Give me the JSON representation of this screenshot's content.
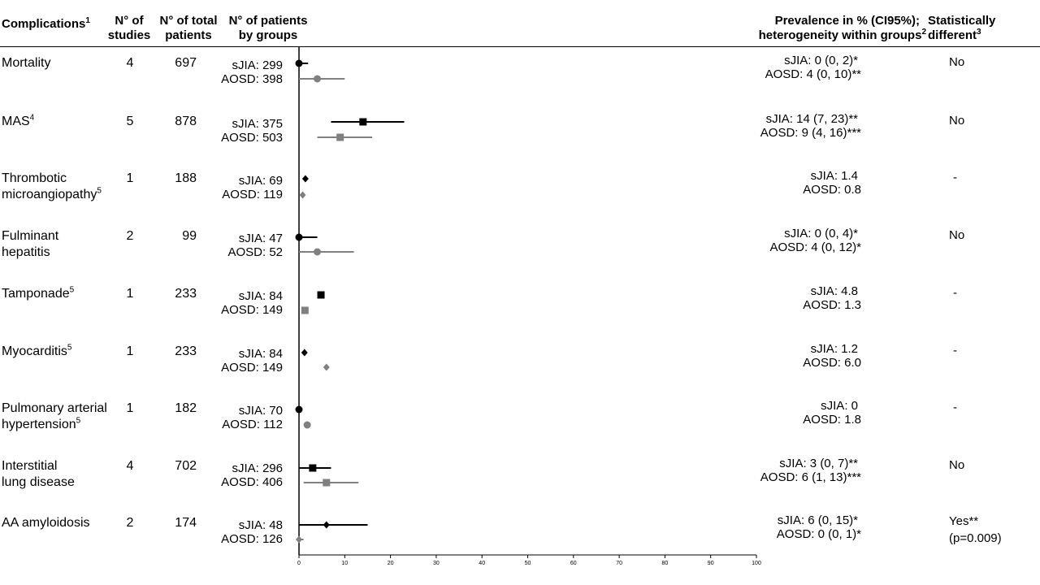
{
  "headers": {
    "complications": "Complications",
    "complications_sup": "1",
    "studies_line1": "N° of",
    "studies_line2": "studies",
    "total_line1": "N° of total",
    "total_line2": "patients",
    "groups_line1": "N° of patients",
    "groups_line2": "by groups",
    "prevalence_line1": "Prevalence in % (CI95%);",
    "prevalence_line2": "heterogeneity within groups",
    "prevalence_sup": "2",
    "statdiff_line1": "Statistically",
    "statdiff_line2": "different",
    "statdiff_sup": "3"
  },
  "rows": [
    {
      "name_lines": [
        "Mortality"
      ],
      "name_sup": "",
      "studies": "4",
      "total": "697",
      "sjia_n": "sJIA: 299",
      "aosd_n": "AOSD: 398",
      "sjia_prev": "sJIA: 0 (0, 2)*",
      "aosd_prev": "AOSD: 4 (0, 10)**",
      "stat": [
        "No"
      ]
    },
    {
      "name_lines": [
        "MAS"
      ],
      "name_sup": "4",
      "studies": "5",
      "total": "878",
      "sjia_n": "sJIA: 375",
      "aosd_n": "AOSD: 503",
      "sjia_prev": "sJIA: 14 (7, 23)**",
      "aosd_prev": "AOSD: 9 (4, 16)***",
      "stat": [
        "No"
      ]
    },
    {
      "name_lines": [
        "Thrombotic",
        "microangiopathy"
      ],
      "name_sup": "5",
      "studies": "1",
      "total": "188",
      "sjia_n": "sJIA: 69",
      "aosd_n": "AOSD: 119",
      "sjia_prev": "sJIA: 1.4",
      "aosd_prev": "AOSD: 0.8",
      "stat": [
        "-"
      ]
    },
    {
      "name_lines": [
        "Fulminant",
        "hepatitis"
      ],
      "name_sup": "",
      "studies": "2",
      "total": "99",
      "sjia_n": "sJIA: 47",
      "aosd_n": "AOSD: 52",
      "sjia_prev": "sJIA: 0 (0, 4)*",
      "aosd_prev": "AOSD: 4 (0, 12)*",
      "stat": [
        "No"
      ]
    },
    {
      "name_lines": [
        "Tamponade"
      ],
      "name_sup": "5",
      "studies": "1",
      "total": "233",
      "sjia_n": "sJIA: 84",
      "aosd_n": "AOSD: 149",
      "sjia_prev": "sJIA: 4.8",
      "aosd_prev": "AOSD: 1.3",
      "stat": [
        "-"
      ]
    },
    {
      "name_lines": [
        "Myocarditis"
      ],
      "name_sup": "5",
      "studies": "1",
      "total": "233",
      "sjia_n": "sJIA: 84",
      "aosd_n": "AOSD: 149",
      "sjia_prev": "sJIA: 1.2",
      "aosd_prev": "AOSD: 6.0",
      "stat": [
        "-"
      ]
    },
    {
      "name_lines": [
        "Pulmonary arterial",
        "hypertension"
      ],
      "name_sup": "5",
      "studies": "1",
      "total": "182",
      "sjia_n": "sJIA: 70",
      "aosd_n": "AOSD: 112",
      "sjia_prev": "sJIA: 0",
      "aosd_prev": "AOSD: 1.8",
      "stat": [
        "-"
      ]
    },
    {
      "name_lines": [
        "Interstitial",
        "lung disease"
      ],
      "name_sup": "",
      "studies": "4",
      "total": "702",
      "sjia_n": "sJIA: 296",
      "aosd_n": "AOSD: 406",
      "sjia_prev": "sJIA: 3 (0, 7)**",
      "aosd_prev": "AOSD: 6 (1, 13)***",
      "stat": [
        "No"
      ]
    },
    {
      "name_lines": [
        "AA amyloidosis"
      ],
      "name_sup": "",
      "studies": "2",
      "total": "174",
      "sjia_n": "sJIA: 48",
      "aosd_n": "AOSD: 126",
      "sjia_prev": "sJIA: 6 (0, 15)*",
      "aosd_prev": "AOSD: 0 (0, 1)*",
      "stat": [
        "Yes**",
        "(p=0.009)"
      ]
    }
  ],
  "colors": {
    "sjia": "#000000",
    "aosd": "#808080"
  },
  "chart_data": {
    "type": "scatter",
    "subtype": "forest-plot",
    "xlim": [
      0,
      100
    ],
    "xticks": [
      0,
      10,
      20,
      30,
      40,
      50,
      60,
      70,
      80,
      90,
      100
    ],
    "grid": false,
    "categories": [
      "Mortality",
      "MAS",
      "Thrombotic microangiopathy",
      "Fulminant hepatitis",
      "Tamponade",
      "Myocarditis",
      "Pulmonary arterial hypertension",
      "Interstitial lung disease",
      "AA amyloidosis"
    ],
    "series": [
      {
        "name": "sJIA",
        "color": "#000000",
        "points": [
          {
            "value": 0,
            "lo": 0,
            "hi": 2,
            "marker": "circle"
          },
          {
            "value": 14,
            "lo": 7,
            "hi": 23,
            "marker": "square"
          },
          {
            "value": 1.4,
            "lo": null,
            "hi": null,
            "marker": "diamond"
          },
          {
            "value": 0,
            "lo": 0,
            "hi": 4,
            "marker": "circle"
          },
          {
            "value": 4.8,
            "lo": null,
            "hi": null,
            "marker": "square"
          },
          {
            "value": 1.2,
            "lo": null,
            "hi": null,
            "marker": "diamond"
          },
          {
            "value": 0,
            "lo": null,
            "hi": null,
            "marker": "circle"
          },
          {
            "value": 3,
            "lo": 0,
            "hi": 7,
            "marker": "square"
          },
          {
            "value": 6,
            "lo": 0,
            "hi": 15,
            "marker": "diamond"
          }
        ]
      },
      {
        "name": "AOSD",
        "color": "#808080",
        "points": [
          {
            "value": 4,
            "lo": 0,
            "hi": 10,
            "marker": "circle"
          },
          {
            "value": 9,
            "lo": 4,
            "hi": 16,
            "marker": "square"
          },
          {
            "value": 0.8,
            "lo": null,
            "hi": null,
            "marker": "diamond"
          },
          {
            "value": 4,
            "lo": 0,
            "hi": 12,
            "marker": "circle"
          },
          {
            "value": 1.3,
            "lo": null,
            "hi": null,
            "marker": "square"
          },
          {
            "value": 6.0,
            "lo": null,
            "hi": null,
            "marker": "diamond"
          },
          {
            "value": 1.8,
            "lo": null,
            "hi": null,
            "marker": "circle"
          },
          {
            "value": 6,
            "lo": 1,
            "hi": 13,
            "marker": "square"
          },
          {
            "value": 0,
            "lo": 0,
            "hi": 1,
            "marker": "diamond"
          }
        ]
      }
    ]
  }
}
